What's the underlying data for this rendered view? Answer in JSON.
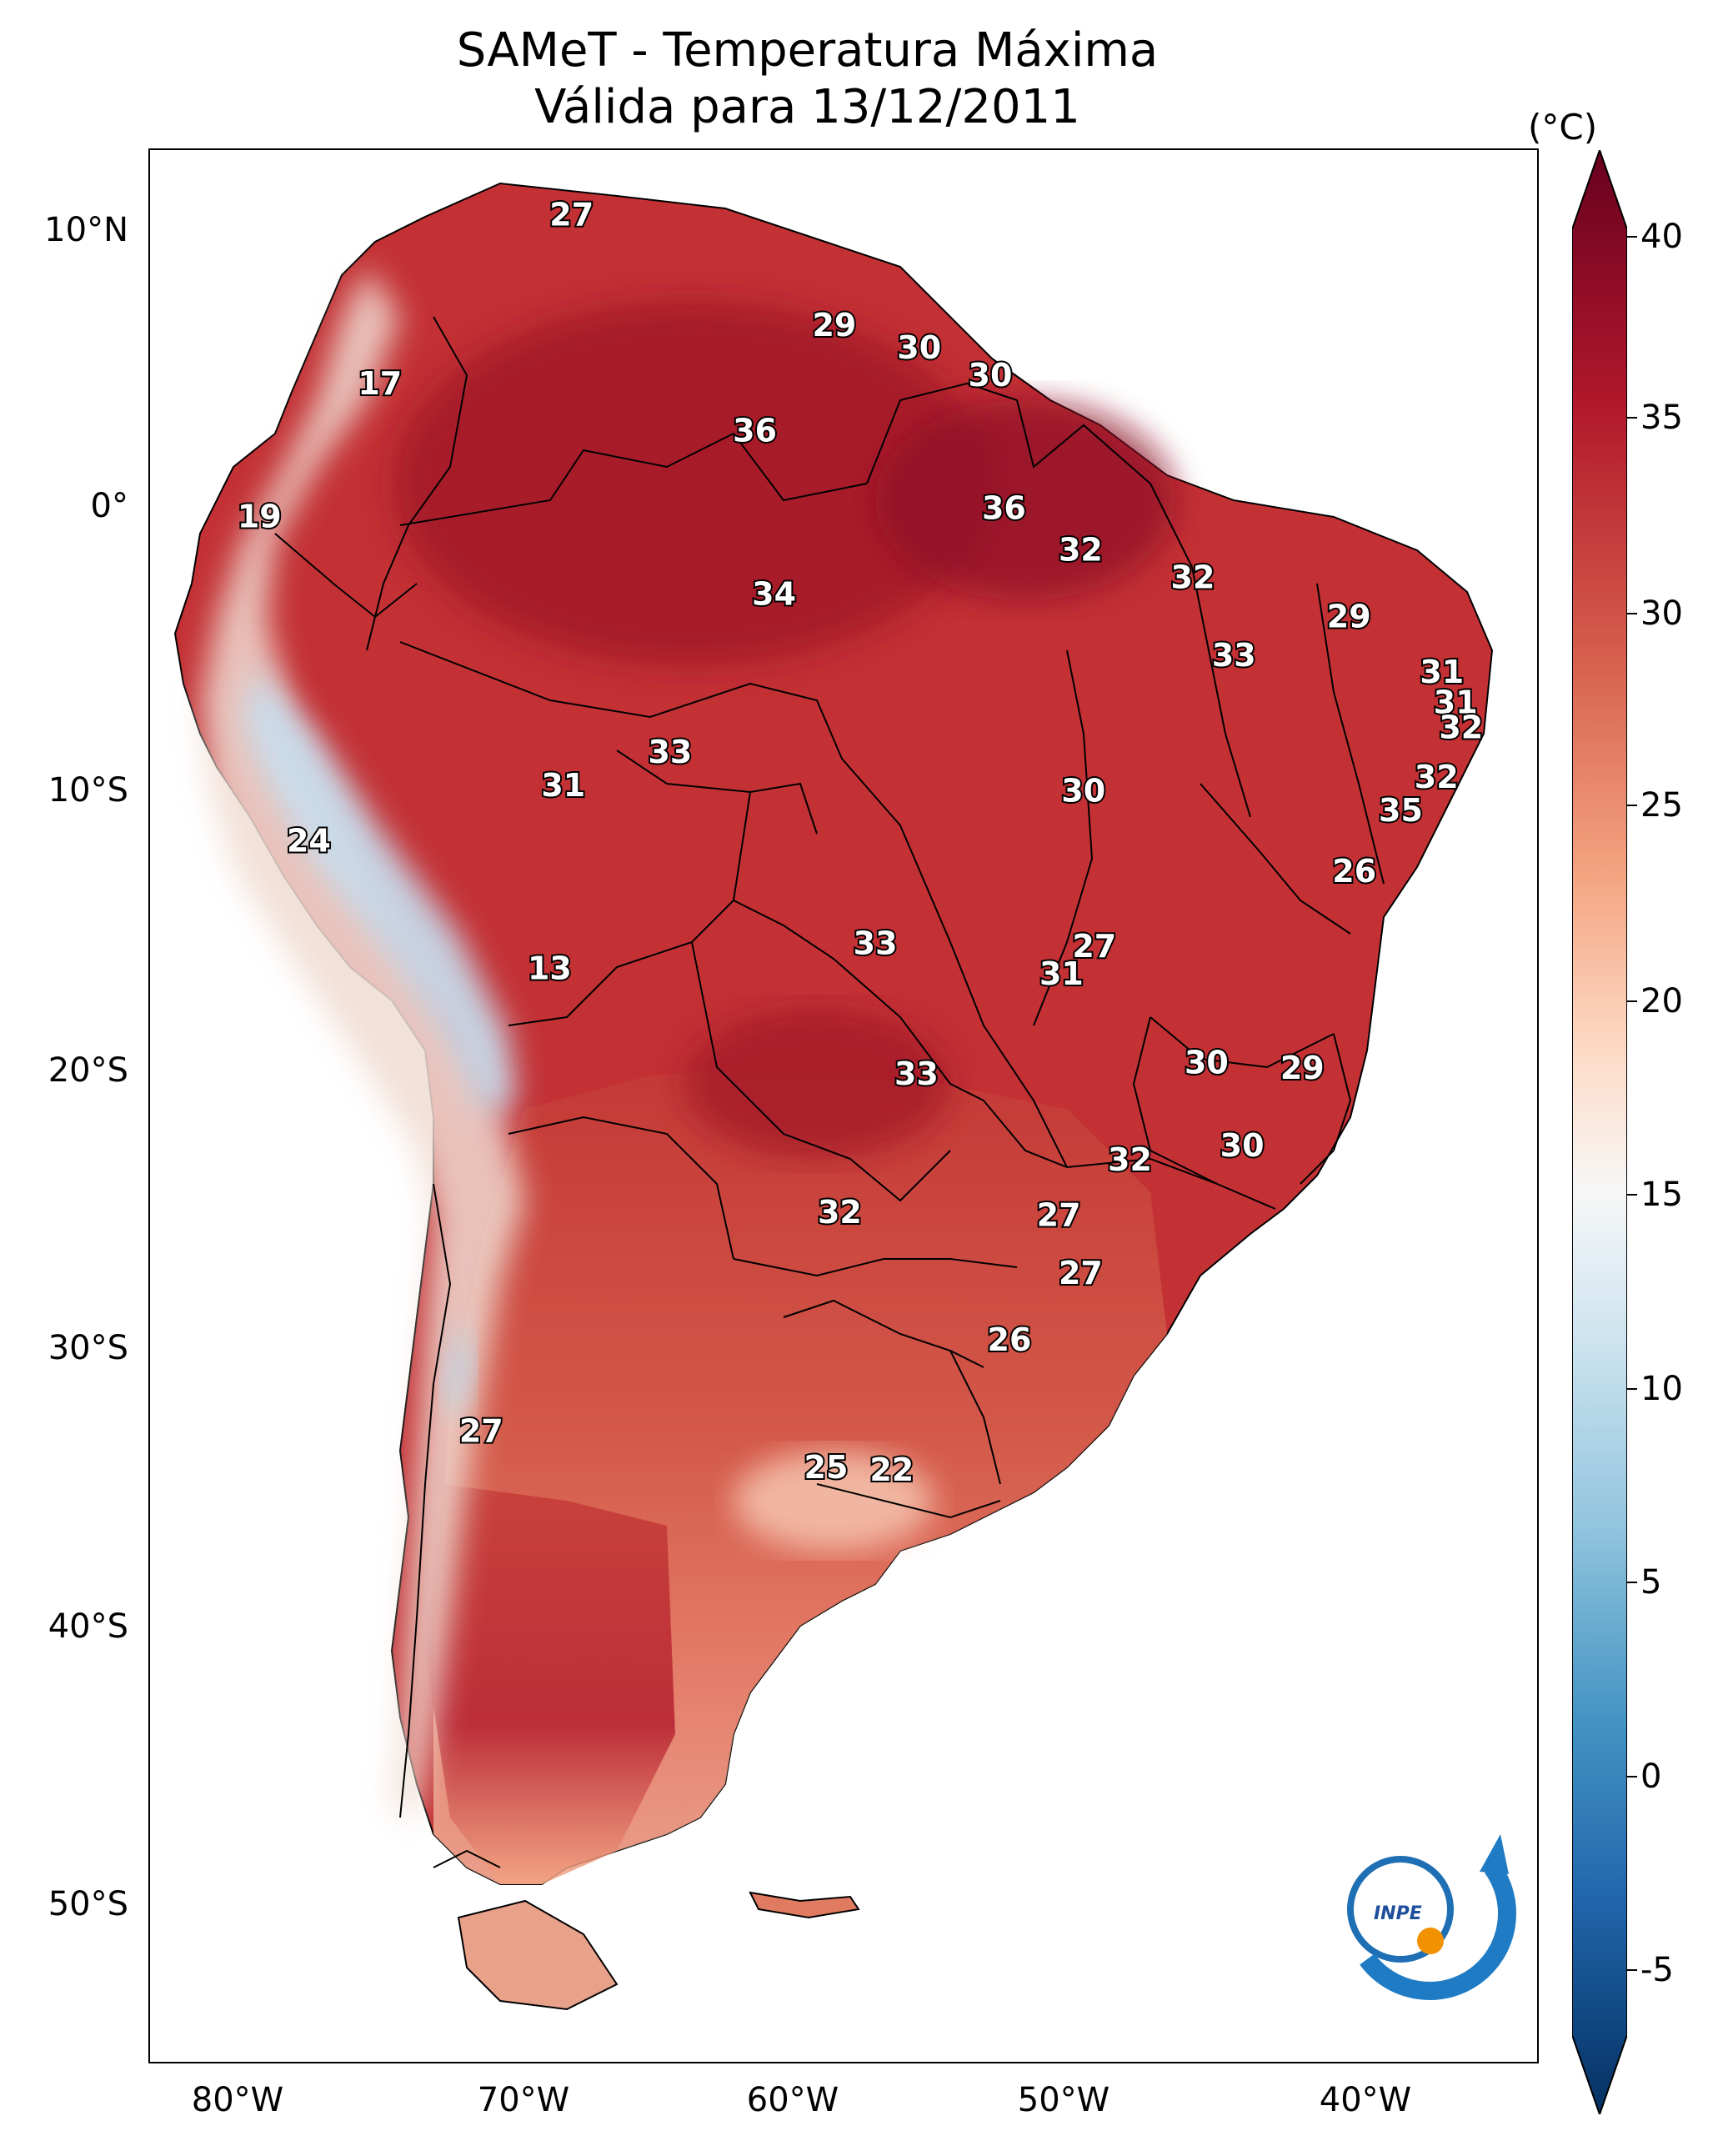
{
  "title_line1": "SAMeT - Temperatura Máxima",
  "title_line2": "Válida para 13/12/2011",
  "units": "(°C)",
  "lat_ticks": [
    "10°N",
    "0°",
    "10°S",
    "20°S",
    "30°S",
    "40°S",
    "50°S"
  ],
  "lon_ticks": [
    "80°W",
    "70°W",
    "60°W",
    "50°W",
    "40°W"
  ],
  "colorbar": {
    "ticks": [
      "40",
      "35",
      "30",
      "25",
      "20",
      "15",
      "10",
      "5",
      "0",
      "-5"
    ],
    "min": -5,
    "max": 40,
    "colors": [
      "#67001f",
      "#b2182b",
      "#d6604d",
      "#f4a582",
      "#fddbc7",
      "#f7f7f7",
      "#d1e5f0",
      "#92c5de",
      "#4393c3",
      "#2166ac",
      "#053061"
    ]
  },
  "logo_text": "INPE",
  "map_labels": [
    {
      "v": "27",
      "lon": -67.5,
      "lat": 10.6
    },
    {
      "v": "29",
      "lon": -57.9,
      "lat": 6.6
    },
    {
      "v": "30",
      "lon": -54.8,
      "lat": 5.8
    },
    {
      "v": "30",
      "lon": -52.2,
      "lat": 4.8
    },
    {
      "v": "17",
      "lon": -74.5,
      "lat": 4.5
    },
    {
      "v": "36",
      "lon": -60.8,
      "lat": 2.8
    },
    {
      "v": "19",
      "lon": -78.9,
      "lat": -0.3
    },
    {
      "v": "36",
      "lon": -51.7,
      "lat": 0.0
    },
    {
      "v": "32",
      "lon": -48.9,
      "lat": -1.5
    },
    {
      "v": "32",
      "lon": -44.8,
      "lat": -2.5
    },
    {
      "v": "34",
      "lon": -60.1,
      "lat": -3.1
    },
    {
      "v": "29",
      "lon": -39.1,
      "lat": -3.9
    },
    {
      "v": "33",
      "lon": -43.3,
      "lat": -5.3
    },
    {
      "v": "31",
      "lon": -35.7,
      "lat": -5.9
    },
    {
      "v": "31",
      "lon": -35.2,
      "lat": -7.0
    },
    {
      "v": "32",
      "lon": -35.0,
      "lat": -7.9
    },
    {
      "v": "33",
      "lon": -63.9,
      "lat": -8.8
    },
    {
      "v": "32",
      "lon": -35.9,
      "lat": -9.7
    },
    {
      "v": "31",
      "lon": -67.8,
      "lat": -10.0
    },
    {
      "v": "30",
      "lon": -48.8,
      "lat": -10.2
    },
    {
      "v": "35",
      "lon": -37.2,
      "lat": -10.9
    },
    {
      "v": "24",
      "lon": -77.1,
      "lat": -12.0
    },
    {
      "v": "26",
      "lon": -38.9,
      "lat": -13.1
    },
    {
      "v": "27",
      "lon": -48.4,
      "lat": -15.8
    },
    {
      "v": "33",
      "lon": -56.4,
      "lat": -15.7
    },
    {
      "v": "31",
      "lon": -49.6,
      "lat": -16.8
    },
    {
      "v": "13",
      "lon": -68.3,
      "lat": -16.6
    },
    {
      "v": "30",
      "lon": -44.3,
      "lat": -20.0
    },
    {
      "v": "29",
      "lon": -40.8,
      "lat": -20.2
    },
    {
      "v": "33",
      "lon": -54.9,
      "lat": -20.4
    },
    {
      "v": "30",
      "lon": -43.0,
      "lat": -23.0
    },
    {
      "v": "32",
      "lon": -47.1,
      "lat": -23.5
    },
    {
      "v": "32",
      "lon": -57.7,
      "lat": -25.4
    },
    {
      "v": "27",
      "lon": -49.7,
      "lat": -25.5
    },
    {
      "v": "27",
      "lon": -48.9,
      "lat": -27.6
    },
    {
      "v": "26",
      "lon": -51.5,
      "lat": -30.0
    },
    {
      "v": "27",
      "lon": -70.8,
      "lat": -33.3
    },
    {
      "v": "25",
      "lon": -58.2,
      "lat": -34.6
    },
    {
      "v": "22",
      "lon": -55.8,
      "lat": -34.7
    }
  ]
}
